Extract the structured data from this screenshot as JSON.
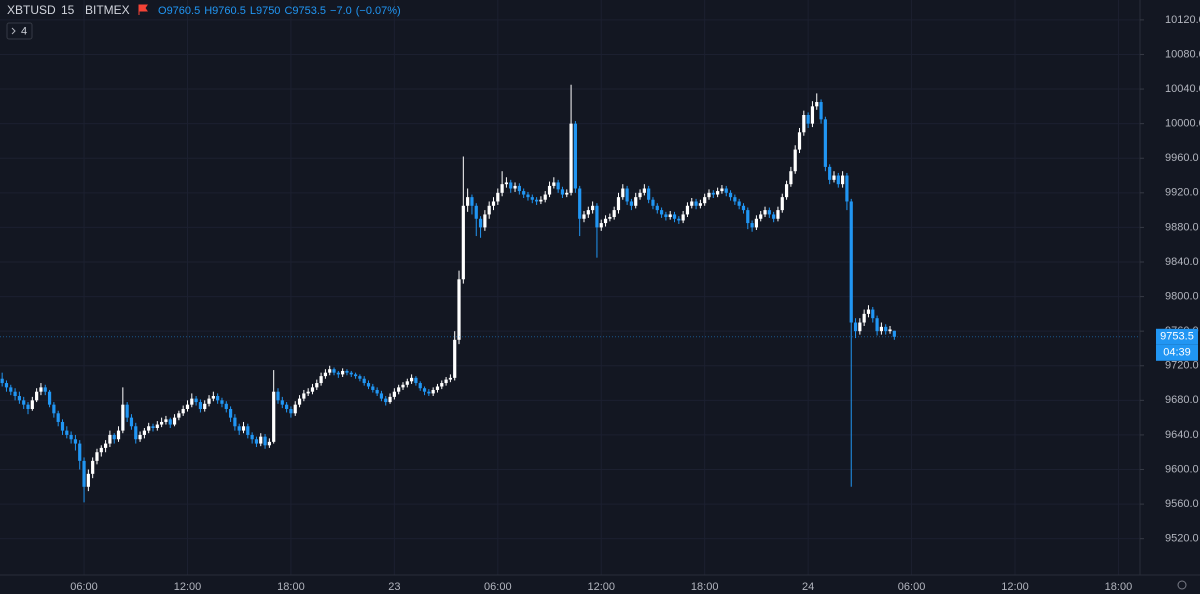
{
  "header": {
    "symbol": "XBTUSD",
    "interval": "15",
    "exchange": "BITMEX",
    "letters": [
      "O",
      "H",
      "L",
      "C"
    ],
    "change": "−7.0",
    "change_pct": "(−0.07%)",
    "indicators": "4"
  },
  "countdown": "04:39",
  "chart_data": {
    "type": "candlestick",
    "up_color": "#ffffff",
    "down_color": "#2196f3",
    "grid": true,
    "ylim": [
      9478,
      10143
    ],
    "yticks": [
      {
        "value": 9520,
        "label": "9520.0"
      },
      {
        "value": 9560,
        "label": "9560.0"
      },
      {
        "value": 9600,
        "label": "9600.0"
      },
      {
        "value": 9640,
        "label": "9640.0"
      },
      {
        "value": 9680,
        "label": "9680.0"
      },
      {
        "value": 9720,
        "label": "9720.0"
      },
      {
        "value": 9760,
        "label": "9760.0"
      },
      {
        "value": 9800,
        "label": "9800.0"
      },
      {
        "value": 9840,
        "label": "9840.0"
      },
      {
        "value": 9880,
        "label": "9880.0"
      },
      {
        "value": 9920,
        "label": "9920.0"
      },
      {
        "value": 9960,
        "label": "9960.0"
      },
      {
        "value": 10000,
        "label": "10000.0"
      },
      {
        "value": 10040,
        "label": "10040.0"
      },
      {
        "value": 10080,
        "label": "10080.0"
      },
      {
        "value": 10120,
        "label": "10120.0"
      }
    ],
    "xlim": [
      -0.5,
      264
    ],
    "xticks": [
      {
        "value": 19,
        "label": "06:00"
      },
      {
        "value": 43,
        "label": "12:00"
      },
      {
        "value": 67,
        "label": "18:00"
      },
      {
        "value": 91,
        "label": "23"
      },
      {
        "value": 115,
        "label": "06:00"
      },
      {
        "value": 139,
        "label": "12:00"
      },
      {
        "value": 163,
        "label": "18:00"
      },
      {
        "value": 187,
        "label": "24"
      },
      {
        "value": 211,
        "label": "06:00"
      },
      {
        "value": 235,
        "label": "12:00"
      },
      {
        "value": 259,
        "label": "18:00"
      }
    ],
    "candles": [
      [
        9705,
        9712,
        9696,
        9700
      ],
      [
        9700,
        9703,
        9690,
        9695
      ],
      [
        9695,
        9698,
        9686,
        9690
      ],
      [
        9690,
        9694,
        9680,
        9685
      ],
      [
        9685,
        9690,
        9676,
        9680
      ],
      [
        9680,
        9684,
        9670,
        9675
      ],
      [
        9675,
        9678,
        9664,
        9670
      ],
      [
        9670,
        9684,
        9668,
        9680
      ],
      [
        9680,
        9694,
        9678,
        9690
      ],
      [
        9690,
        9700,
        9686,
        9695
      ],
      [
        9695,
        9698,
        9686,
        9690
      ],
      [
        9690,
        9692,
        9672,
        9675
      ],
      [
        9675,
        9678,
        9660,
        9665
      ],
      [
        9665,
        9668,
        9650,
        9655
      ],
      [
        9655,
        9658,
        9640,
        9645
      ],
      [
        9645,
        9650,
        9636,
        9640
      ],
      [
        9640,
        9644,
        9630,
        9635
      ],
      [
        9635,
        9640,
        9622,
        9630
      ],
      [
        9630,
        9634,
        9600,
        9610
      ],
      [
        9610,
        9614,
        9562,
        9580
      ],
      [
        9580,
        9600,
        9575,
        9595
      ],
      [
        9595,
        9614,
        9590,
        9610
      ],
      [
        9610,
        9624,
        9606,
        9620
      ],
      [
        9620,
        9628,
        9615,
        9625
      ],
      [
        9625,
        9634,
        9620,
        9630
      ],
      [
        9630,
        9645,
        9626,
        9640
      ],
      [
        9640,
        9642,
        9630,
        9635
      ],
      [
        9635,
        9650,
        9632,
        9645
      ],
      [
        9645,
        9695,
        9642,
        9675
      ],
      [
        9675,
        9678,
        9655,
        9660
      ],
      [
        9660,
        9664,
        9646,
        9650
      ],
      [
        9650,
        9654,
        9630,
        9635
      ],
      [
        9635,
        9644,
        9632,
        9640
      ],
      [
        9640,
        9648,
        9636,
        9645
      ],
      [
        9645,
        9654,
        9642,
        9650
      ],
      [
        9650,
        9653,
        9644,
        9648
      ],
      [
        9648,
        9656,
        9645,
        9652
      ],
      [
        9652,
        9660,
        9649,
        9655
      ],
      [
        9655,
        9662,
        9652,
        9658
      ],
      [
        9658,
        9660,
        9648,
        9652
      ],
      [
        9652,
        9664,
        9650,
        9660
      ],
      [
        9660,
        9668,
        9657,
        9665
      ],
      [
        9665,
        9674,
        9662,
        9670
      ],
      [
        9670,
        9680,
        9667,
        9675
      ],
      [
        9675,
        9688,
        9672,
        9682
      ],
      [
        9682,
        9685,
        9674,
        9678
      ],
      [
        9678,
        9681,
        9666,
        9670
      ],
      [
        9670,
        9680,
        9667,
        9676
      ],
      [
        9676,
        9686,
        9673,
        9682
      ],
      [
        9682,
        9690,
        9679,
        9685
      ],
      [
        9685,
        9688,
        9676,
        9680
      ],
      [
        9680,
        9683,
        9672,
        9676
      ],
      [
        9676,
        9679,
        9666,
        9670
      ],
      [
        9670,
        9673,
        9655,
        9660
      ],
      [
        9660,
        9664,
        9645,
        9650
      ],
      [
        9650,
        9653,
        9640,
        9645
      ],
      [
        9645,
        9655,
        9642,
        9650
      ],
      [
        9650,
        9653,
        9636,
        9640
      ],
      [
        9640,
        9643,
        9630,
        9635
      ],
      [
        9635,
        9638,
        9626,
        9630
      ],
      [
        9630,
        9642,
        9627,
        9638
      ],
      [
        9638,
        9641,
        9624,
        9628
      ],
      [
        9628,
        9636,
        9625,
        9632
      ],
      [
        9632,
        9715,
        9630,
        9690
      ],
      [
        9690,
        9694,
        9676,
        9680
      ],
      [
        9680,
        9684,
        9671,
        9675
      ],
      [
        9675,
        9678,
        9666,
        9670
      ],
      [
        9670,
        9673,
        9660,
        9665
      ],
      [
        9665,
        9679,
        9662,
        9675
      ],
      [
        9675,
        9686,
        9672,
        9682
      ],
      [
        9682,
        9692,
        9679,
        9688
      ],
      [
        9688,
        9694,
        9685,
        9690
      ],
      [
        9690,
        9699,
        9687,
        9695
      ],
      [
        9695,
        9704,
        9692,
        9700
      ],
      [
        9700,
        9712,
        9697,
        9708
      ],
      [
        9708,
        9716,
        9705,
        9712
      ],
      [
        9712,
        9720,
        9709,
        9716
      ],
      [
        9716,
        9718,
        9709,
        9712
      ],
      [
        9712,
        9714,
        9706,
        9710
      ],
      [
        9710,
        9717,
        9707,
        9714
      ],
      [
        9714,
        9716,
        9709,
        9712
      ],
      [
        9712,
        9714,
        9707,
        9710
      ],
      [
        9710,
        9712,
        9705,
        9708
      ],
      [
        9708,
        9710,
        9702,
        9705
      ],
      [
        9705,
        9708,
        9697,
        9700
      ],
      [
        9700,
        9703,
        9693,
        9696
      ],
      [
        9696,
        9699,
        9689,
        9692
      ],
      [
        9692,
        9695,
        9685,
        9688
      ],
      [
        9688,
        9691,
        9679,
        9682
      ],
      [
        9682,
        9685,
        9674,
        9678
      ],
      [
        9678,
        9688,
        9676,
        9684
      ],
      [
        9684,
        9694,
        9681,
        9690
      ],
      [
        9690,
        9698,
        9687,
        9695
      ],
      [
        9695,
        9701,
        9692,
        9698
      ],
      [
        9698,
        9705,
        9695,
        9702
      ],
      [
        9702,
        9710,
        9699,
        9706
      ],
      [
        9706,
        9708,
        9697,
        9700
      ],
      [
        9700,
        9702,
        9691,
        9694
      ],
      [
        9694,
        9696,
        9686,
        9690
      ],
      [
        9690,
        9693,
        9685,
        9688
      ],
      [
        9688,
        9695,
        9685,
        9692
      ],
      [
        9692,
        9699,
        9689,
        9696
      ],
      [
        9696,
        9703,
        9693,
        9700
      ],
      [
        9700,
        9707,
        9697,
        9704
      ],
      [
        9704,
        9710,
        9701,
        9706
      ],
      [
        9706,
        9760,
        9703,
        9750
      ],
      [
        9750,
        9830,
        9745,
        9820
      ],
      [
        9820,
        9962,
        9815,
        9905
      ],
      [
        9905,
        9925,
        9898,
        9915
      ],
      [
        9915,
        9918,
        9895,
        9905
      ],
      [
        9905,
        9908,
        9870,
        9890
      ],
      [
        9890,
        9893,
        9868,
        9880
      ],
      [
        9880,
        9900,
        9876,
        9895
      ],
      [
        9895,
        9910,
        9890,
        9905
      ],
      [
        9905,
        9915,
        9900,
        9910
      ],
      [
        9910,
        9925,
        9906,
        9920
      ],
      [
        9920,
        9945,
        9916,
        9930
      ],
      [
        9930,
        9938,
        9926,
        9932
      ],
      [
        9932,
        9935,
        9920,
        9925
      ],
      [
        9925,
        9932,
        9921,
        9928
      ],
      [
        9928,
        9931,
        9918,
        9922
      ],
      [
        9922,
        9925,
        9914,
        9918
      ],
      [
        9918,
        9921,
        9911,
        9915
      ],
      [
        9915,
        9918,
        9908,
        9912
      ],
      [
        9912,
        9915,
        9906,
        9910
      ],
      [
        9910,
        9916,
        9907,
        9912
      ],
      [
        9912,
        9922,
        9909,
        9918
      ],
      [
        9918,
        9933,
        9915,
        9928
      ],
      [
        9928,
        9938,
        9925,
        9932
      ],
      [
        9932,
        9935,
        9920,
        9924
      ],
      [
        9924,
        9927,
        9914,
        9918
      ],
      [
        9918,
        9924,
        9915,
        9920
      ],
      [
        9920,
        10045,
        9917,
        10000
      ],
      [
        10000,
        10003,
        9920,
        9925
      ],
      [
        9925,
        9928,
        9870,
        9890
      ],
      [
        9890,
        9899,
        9886,
        9895
      ],
      [
        9895,
        9904,
        9891,
        9900
      ],
      [
        9900,
        9910,
        9896,
        9905
      ],
      [
        9905,
        9908,
        9845,
        9880
      ],
      [
        9880,
        9889,
        9876,
        9885
      ],
      [
        9885,
        9894,
        9881,
        9890
      ],
      [
        9890,
        9896,
        9887,
        9892
      ],
      [
        9892,
        9904,
        9889,
        9900
      ],
      [
        9900,
        9920,
        9896,
        9915
      ],
      [
        9915,
        9930,
        9912,
        9925
      ],
      [
        9925,
        9928,
        9906,
        9910
      ],
      [
        9910,
        9913,
        9900,
        9905
      ],
      [
        9905,
        9920,
        9902,
        9915
      ],
      [
        9915,
        9924,
        9912,
        9920
      ],
      [
        9920,
        9930,
        9917,
        9925
      ],
      [
        9925,
        9928,
        9908,
        9912
      ],
      [
        9912,
        9915,
        9901,
        9905
      ],
      [
        9905,
        9908,
        9896,
        9900
      ],
      [
        9900,
        9903,
        9891,
        9895
      ],
      [
        9895,
        9898,
        9888,
        9892
      ],
      [
        9892,
        9899,
        9889,
        9895
      ],
      [
        9895,
        9898,
        9886,
        9890
      ],
      [
        9890,
        9893,
        9884,
        9888
      ],
      [
        9888,
        9899,
        9885,
        9895
      ],
      [
        9895,
        9909,
        9892,
        9905
      ],
      [
        9905,
        9914,
        9902,
        9910
      ],
      [
        9910,
        9913,
        9901,
        9905
      ],
      [
        9905,
        9912,
        9902,
        9908
      ],
      [
        9908,
        9919,
        9905,
        9915
      ],
      [
        9915,
        9924,
        9912,
        9920
      ],
      [
        9920,
        9923,
        9914,
        9918
      ],
      [
        9918,
        9926,
        9915,
        9922
      ],
      [
        9922,
        9929,
        9919,
        9925
      ],
      [
        9925,
        9928,
        9916,
        9920
      ],
      [
        9920,
        9923,
        9911,
        9915
      ],
      [
        9915,
        9918,
        9906,
        9910
      ],
      [
        9910,
        9913,
        9901,
        9905
      ],
      [
        9905,
        9908,
        9896,
        9900
      ],
      [
        9900,
        9903,
        9878,
        9885
      ],
      [
        9885,
        9888,
        9875,
        9880
      ],
      [
        9880,
        9894,
        9877,
        9890
      ],
      [
        9890,
        9899,
        9887,
        9895
      ],
      [
        9895,
        9904,
        9892,
        9900
      ],
      [
        9900,
        9903,
        9891,
        9895
      ],
      [
        9895,
        9898,
        9886,
        9890
      ],
      [
        9890,
        9904,
        9887,
        9900
      ],
      [
        9900,
        9919,
        9897,
        9915
      ],
      [
        9915,
        9934,
        9912,
        9930
      ],
      [
        9930,
        9950,
        9927,
        9945
      ],
      [
        9945,
        9975,
        9942,
        9970
      ],
      [
        9970,
        9995,
        9966,
        9990
      ],
      [
        9990,
        10015,
        9986,
        10010
      ],
      [
        10010,
        10013,
        9995,
        10000
      ],
      [
        10000,
        10026,
        9996,
        10020
      ],
      [
        10020,
        10035,
        10016,
        10025
      ],
      [
        10025,
        10028,
        10000,
        10005
      ],
      [
        10005,
        10008,
        9945,
        9950
      ],
      [
        9950,
        9953,
        9930,
        9935
      ],
      [
        9935,
        9945,
        9932,
        9940
      ],
      [
        9940,
        9943,
        9926,
        9930
      ],
      [
        9930,
        9945,
        9926,
        9940
      ],
      [
        9940,
        9943,
        9900,
        9910
      ],
      [
        9910,
        9913,
        9580,
        9770
      ],
      [
        9770,
        9775,
        9752,
        9760
      ],
      [
        9760,
        9775,
        9756,
        9770
      ],
      [
        9770,
        9785,
        9766,
        9780
      ],
      [
        9780,
        9790,
        9776,
        9785
      ],
      [
        9785,
        9788,
        9770,
        9775
      ],
      [
        9775,
        9778,
        9755,
        9760
      ],
      [
        9760,
        9770,
        9756,
        9765
      ],
      [
        9765,
        9768,
        9756,
        9760
      ],
      [
        9760,
        9766,
        9757,
        9762
      ],
      [
        9760.5,
        9760.5,
        9750,
        9753.5
      ]
    ]
  }
}
